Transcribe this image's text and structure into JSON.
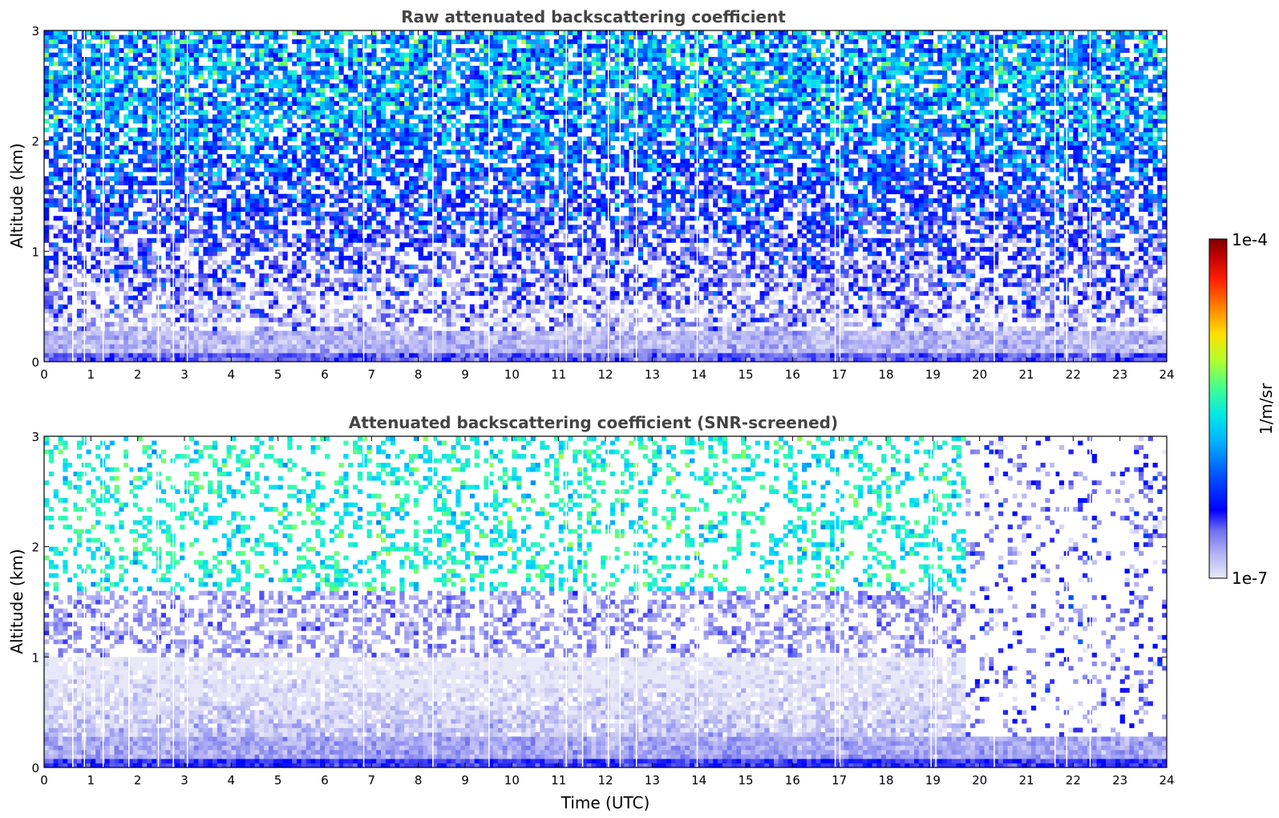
{
  "chart_data": [
    {
      "type": "heatmap",
      "title": "Raw attenuated backscattering coefficient",
      "xlabel": "",
      "ylabel": "Altitude (km)",
      "xlim": [
        0,
        24
      ],
      "ylim": [
        0,
        3
      ],
      "x_ticks": [
        "0",
        "1",
        "2",
        "3",
        "4",
        "5",
        "6",
        "7",
        "8",
        "9",
        "10",
        "11",
        "12",
        "13",
        "14",
        "15",
        "16",
        "17",
        "18",
        "19",
        "20",
        "21",
        "22",
        "23",
        "24"
      ],
      "y_ticks": [
        "0",
        "1",
        "2",
        "3"
      ],
      "color_scale": "log",
      "value_range": [
        1e-07,
        0.0001
      ],
      "profile": {
        "surface_layer_top_km": 0.3,
        "surface_log10": -6.8,
        "aloft_log10": -5.9,
        "noise": "high"
      },
      "data_gaps_hours": [
        0.6,
        0.85,
        1.25,
        2.43,
        2.75,
        3.05,
        6.82,
        8.3,
        9.5,
        11.15,
        11.5,
        12.05,
        12.3,
        12.65,
        13.95,
        16.9,
        17.0,
        20.3,
        21.6,
        21.85,
        22.35
      ]
    },
    {
      "type": "heatmap",
      "title": "Attenuated backscattering coefficient (SNR-screened)",
      "xlabel": "Time (UTC)",
      "ylabel": "Altitude (km)",
      "xlim": [
        0,
        24
      ],
      "ylim": [
        0,
        3
      ],
      "x_ticks": [
        "0",
        "1",
        "2",
        "3",
        "4",
        "5",
        "6",
        "7",
        "8",
        "9",
        "10",
        "11",
        "12",
        "13",
        "14",
        "15",
        "16",
        "17",
        "18",
        "19",
        "20",
        "21",
        "22",
        "23",
        "24"
      ],
      "y_ticks": [
        "0",
        "1",
        "2",
        "3"
      ],
      "color_scale": "log",
      "value_range": [
        1e-07,
        0.0001
      ],
      "profile": {
        "boundary_layer_top_km": 0.3,
        "residual_layer_top_km": 1.0,
        "cloud_band_km": [
          1.0,
          1.6
        ],
        "screened_after_hour": 19.7
      },
      "data_gaps_hours": [
        0.6,
        0.85,
        1.25,
        1.8,
        2.43,
        2.75,
        3.05,
        6.82,
        8.3,
        9.5,
        11.15,
        11.5,
        12.05,
        12.3,
        12.65,
        13.95,
        16.9,
        17.0,
        18.95,
        19.05,
        20.3,
        21.6,
        21.85,
        22.35
      ]
    }
  ],
  "colorbar": {
    "label": "1/m/sr",
    "max_label": "1e-4",
    "min_label": "1e-7",
    "colors": [
      "#e8e8f8",
      "#b4b4f4",
      "#7070f0",
      "#0000ff",
      "#0040ff",
      "#0090ff",
      "#00d8ff",
      "#30ffb0",
      "#90ff50",
      "#e8ff10",
      "#ffc000",
      "#ff6000",
      "#ff1000",
      "#c00000",
      "#800000"
    ]
  }
}
